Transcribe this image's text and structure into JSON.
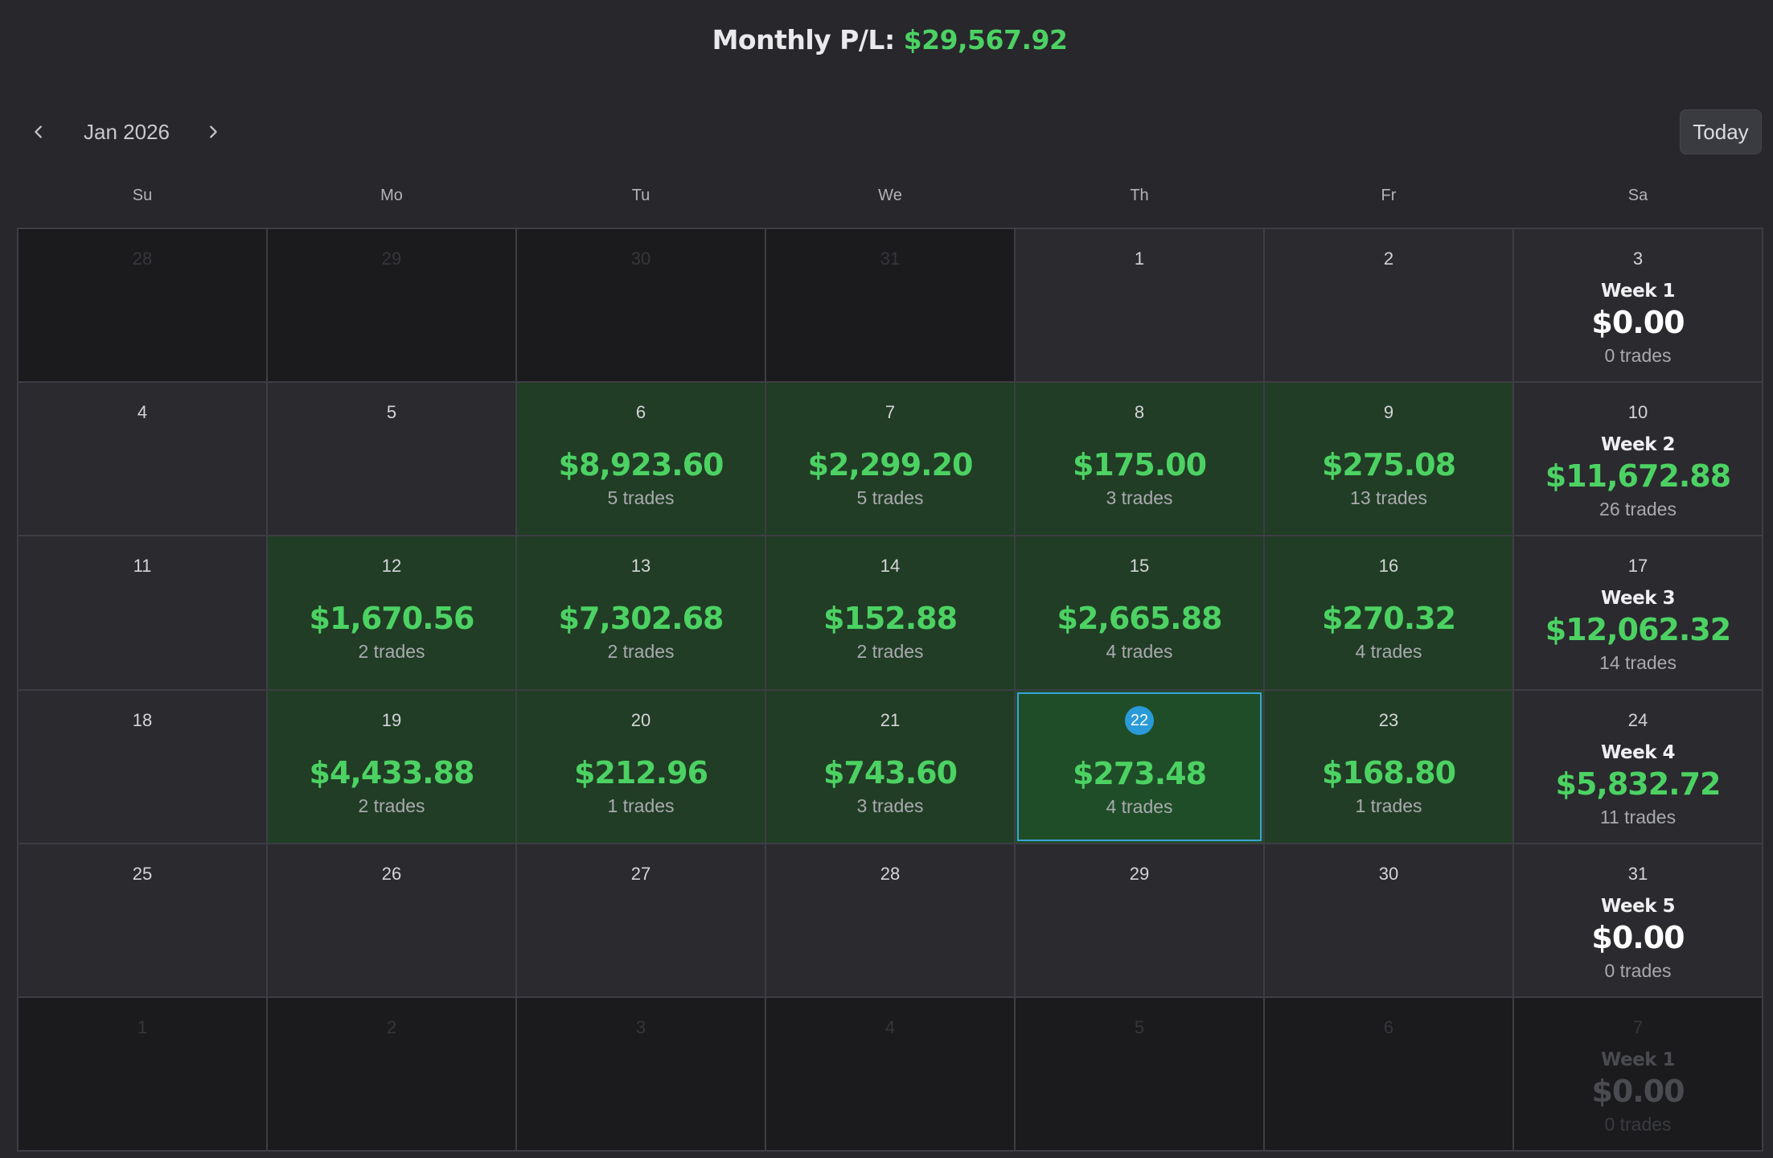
{
  "header": {
    "pl_label": "Monthly P/L:",
    "pl_value": "$29,567.92"
  },
  "nav": {
    "month_label": "Jan 2026",
    "prev_icon": "chevron-left-icon",
    "next_icon": "chevron-right-icon",
    "today_label": "Today"
  },
  "weekdays": [
    "Su",
    "Mo",
    "Tu",
    "We",
    "Th",
    "Fr",
    "Sa"
  ],
  "colors": {
    "background": "#27272c",
    "profit_green": "#4cd263",
    "profit_cell": "#213d25",
    "selected_outline": "#3aa3d6",
    "today_badge": "#2a9bd8"
  },
  "weeks": [
    {
      "days": [
        {
          "day": "28",
          "outside": true
        },
        {
          "day": "29",
          "outside": true
        },
        {
          "day": "30",
          "outside": true
        },
        {
          "day": "31",
          "outside": true
        },
        {
          "day": "1"
        },
        {
          "day": "2"
        },
        {
          "day": "3",
          "week_label": "Week 1",
          "week_amount": "$0.00",
          "week_trades": "0 trades"
        }
      ]
    },
    {
      "days": [
        {
          "day": "4"
        },
        {
          "day": "5"
        },
        {
          "day": "6",
          "amount": "$8,923.60",
          "trades": "5 trades"
        },
        {
          "day": "7",
          "amount": "$2,299.20",
          "trades": "5 trades"
        },
        {
          "day": "8",
          "amount": "$175.00",
          "trades": "3 trades"
        },
        {
          "day": "9",
          "amount": "$275.08",
          "trades": "13 trades"
        },
        {
          "day": "10",
          "week_label": "Week 2",
          "week_amount": "$11,672.88",
          "week_trades": "26 trades",
          "week_positive": true
        }
      ]
    },
    {
      "days": [
        {
          "day": "11"
        },
        {
          "day": "12",
          "amount": "$1,670.56",
          "trades": "2 trades"
        },
        {
          "day": "13",
          "amount": "$7,302.68",
          "trades": "2 trades"
        },
        {
          "day": "14",
          "amount": "$152.88",
          "trades": "2 trades"
        },
        {
          "day": "15",
          "amount": "$2,665.88",
          "trades": "4 trades"
        },
        {
          "day": "16",
          "amount": "$270.32",
          "trades": "4 trades"
        },
        {
          "day": "17",
          "week_label": "Week 3",
          "week_amount": "$12,062.32",
          "week_trades": "14 trades",
          "week_positive": true
        }
      ]
    },
    {
      "days": [
        {
          "day": "18"
        },
        {
          "day": "19",
          "amount": "$4,433.88",
          "trades": "2 trades"
        },
        {
          "day": "20",
          "amount": "$212.96",
          "trades": "1 trades"
        },
        {
          "day": "21",
          "amount": "$743.60",
          "trades": "3 trades"
        },
        {
          "day": "22",
          "amount": "$273.48",
          "trades": "4 trades",
          "today": true
        },
        {
          "day": "23",
          "amount": "$168.80",
          "trades": "1 trades"
        },
        {
          "day": "24",
          "week_label": "Week 4",
          "week_amount": "$5,832.72",
          "week_trades": "11 trades",
          "week_positive": true
        }
      ]
    },
    {
      "days": [
        {
          "day": "25"
        },
        {
          "day": "26"
        },
        {
          "day": "27"
        },
        {
          "day": "28"
        },
        {
          "day": "29"
        },
        {
          "day": "30"
        },
        {
          "day": "31",
          "week_label": "Week 5",
          "week_amount": "$0.00",
          "week_trades": "0 trades"
        }
      ]
    },
    {
      "days": [
        {
          "day": "1",
          "outside": true
        },
        {
          "day": "2",
          "outside": true
        },
        {
          "day": "3",
          "outside": true
        },
        {
          "day": "4",
          "outside": true
        },
        {
          "day": "5",
          "outside": true
        },
        {
          "day": "6",
          "outside": true
        },
        {
          "day": "7",
          "outside": true,
          "week_label": "Week 1",
          "week_amount": "$0.00",
          "week_trades": "0 trades"
        }
      ]
    }
  ]
}
